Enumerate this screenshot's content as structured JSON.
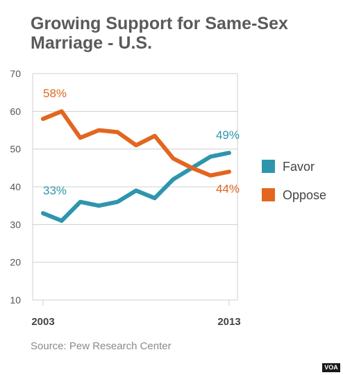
{
  "title_lines": [
    "Growing Support for Same-Sex",
    "Marriage - U.S."
  ],
  "source": "Source: Pew Research Center",
  "logo": "VOA",
  "colors": {
    "favor": "#2f95ad",
    "oppose": "#e2661f",
    "grid": "#cfcfcf",
    "axis_text": "#444444",
    "tick_text": "#555555"
  },
  "chart_data": {
    "type": "line",
    "x": [
      2003,
      2004,
      2005,
      2006,
      2007,
      2008,
      2009,
      2010,
      2011,
      2012,
      2013
    ],
    "x_tick_labels": [
      "2003",
      "2013"
    ],
    "ylim": [
      10,
      70
    ],
    "yticks": [
      10,
      20,
      30,
      40,
      50,
      60,
      70
    ],
    "grid": true,
    "legend_position": "right",
    "series": [
      {
        "name": "Favor",
        "color": "#2f95ad",
        "values": [
          33,
          31,
          36,
          35,
          36,
          39,
          37,
          42,
          45,
          48,
          49
        ],
        "labels": [
          {
            "index": 0,
            "text": "33%"
          },
          {
            "index": 10,
            "text": "49%"
          }
        ]
      },
      {
        "name": "Oppose",
        "color": "#e2661f",
        "values": [
          58,
          60,
          53,
          55,
          54.5,
          51,
          53.5,
          47.5,
          45,
          43,
          44
        ],
        "labels": [
          {
            "index": 0,
            "text": "58%"
          },
          {
            "index": 10,
            "text": "44%"
          }
        ]
      }
    ]
  }
}
